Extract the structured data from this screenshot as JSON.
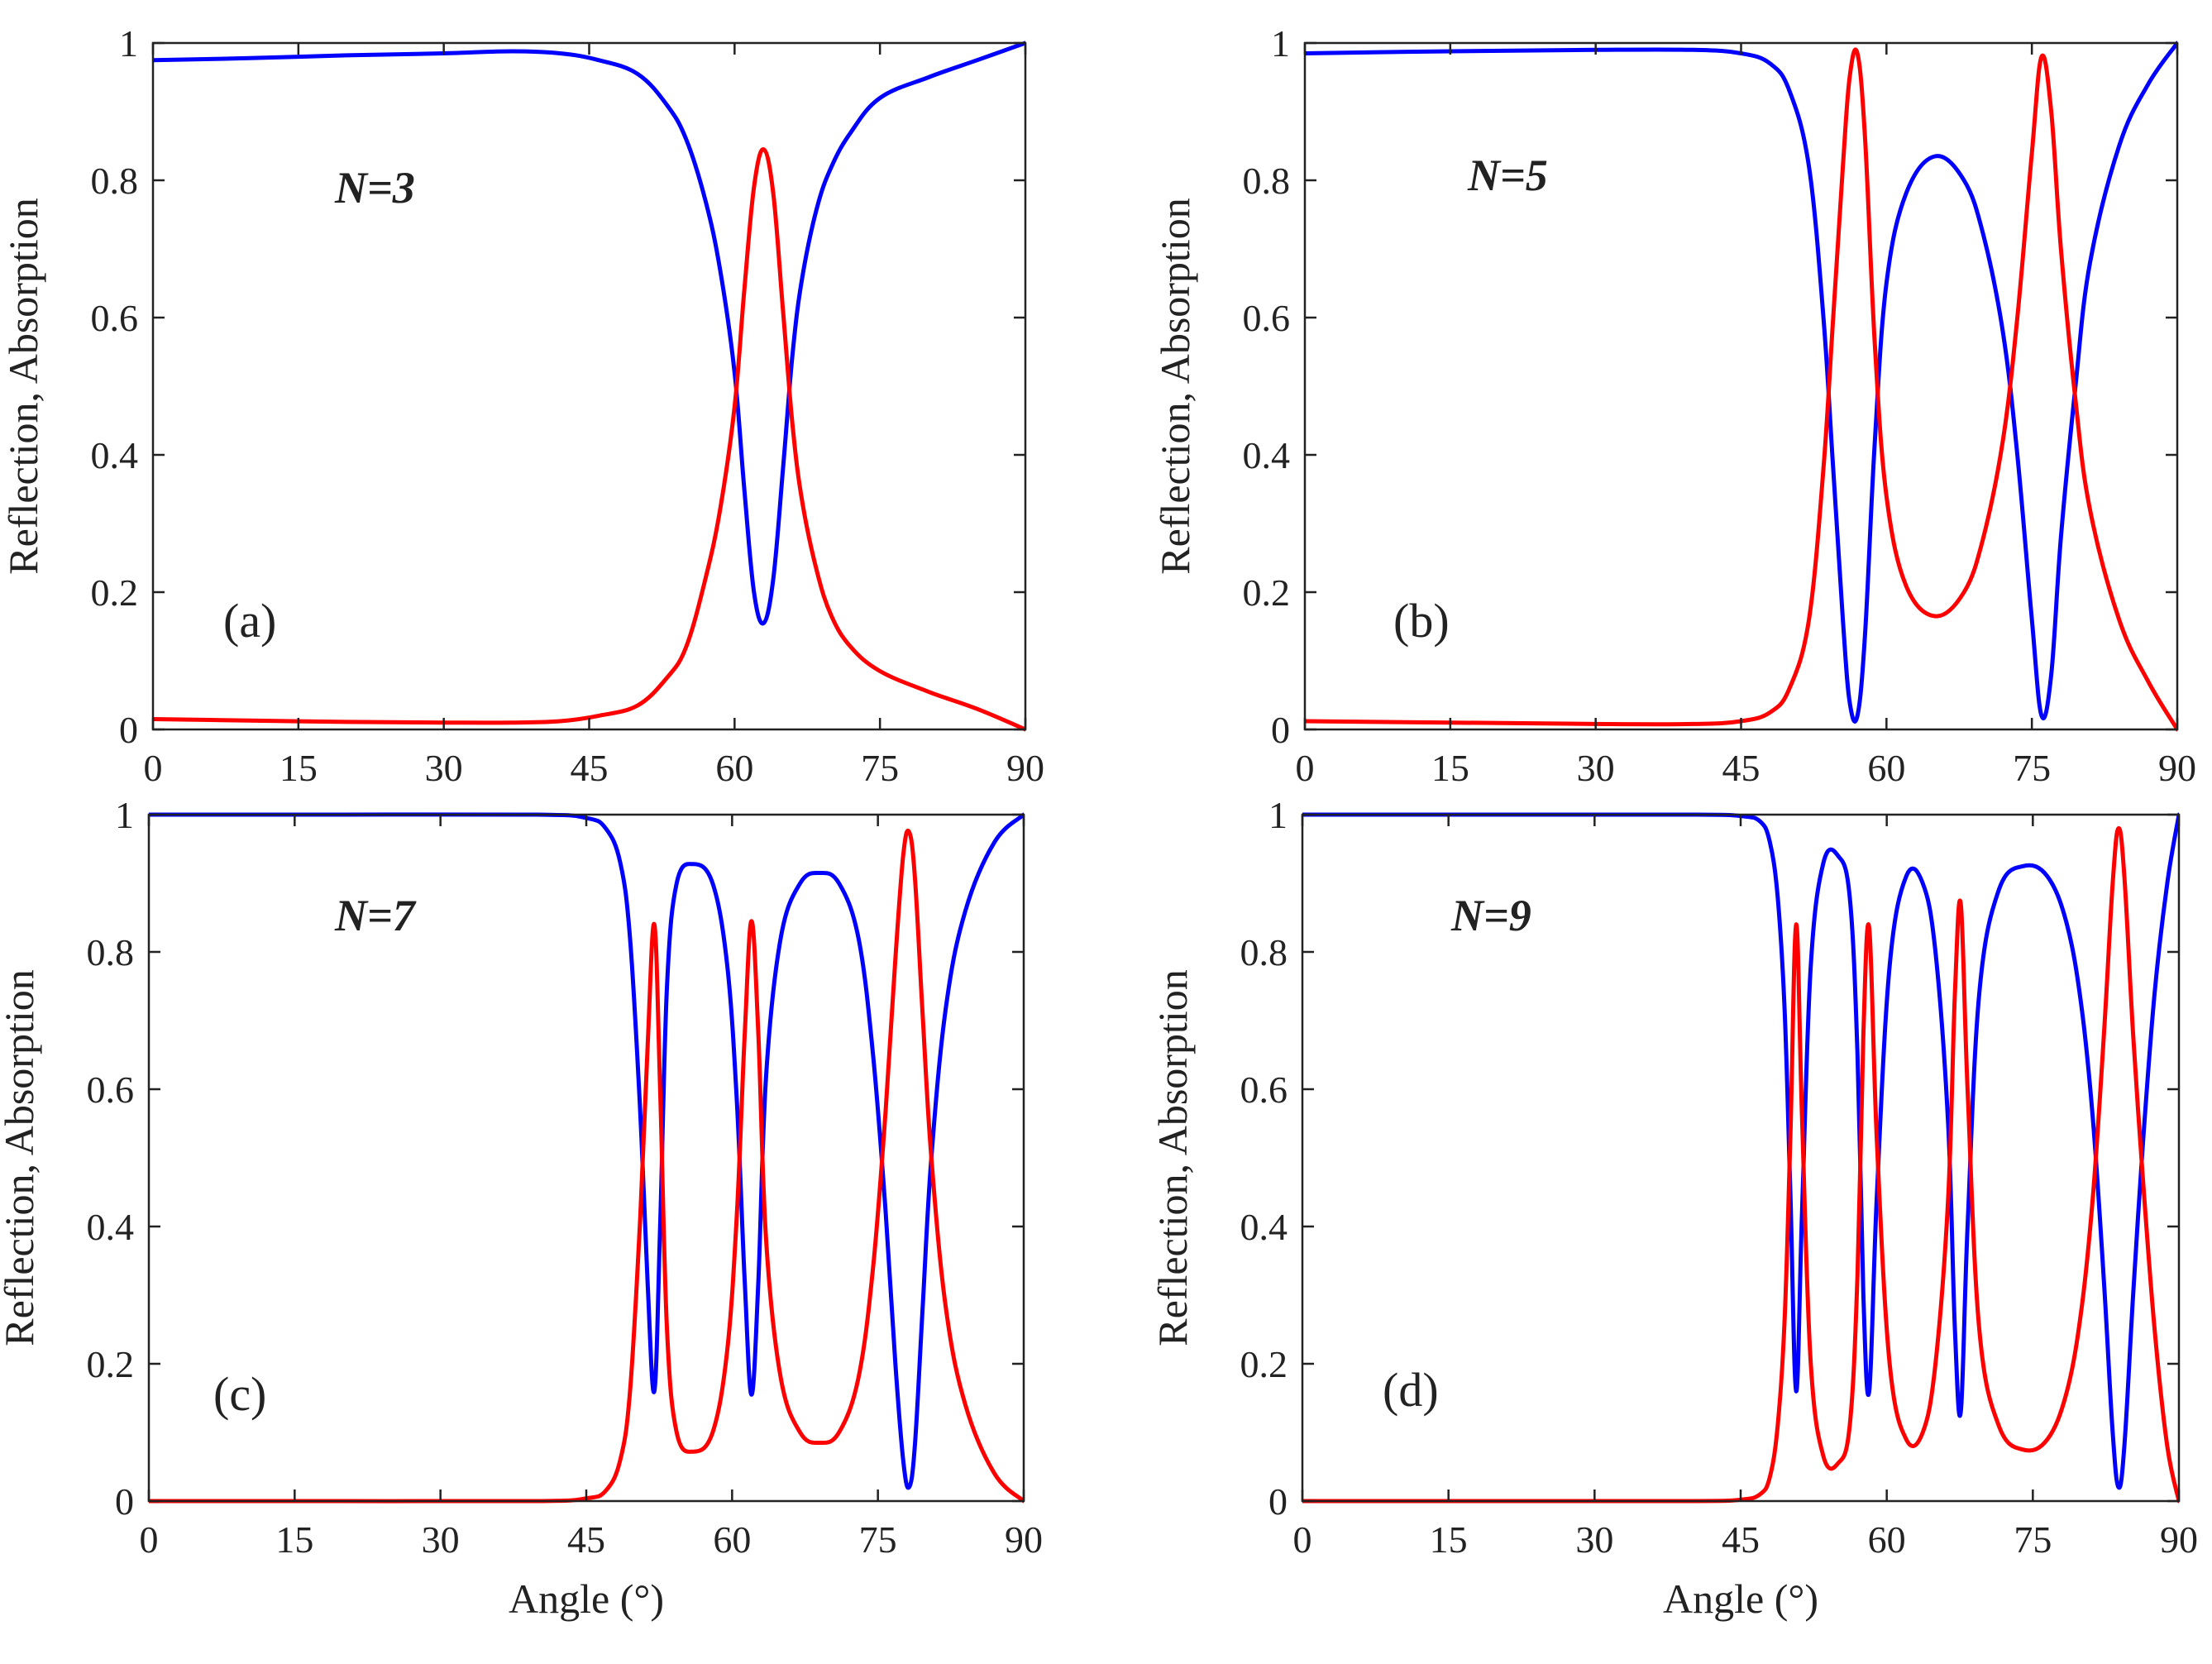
{
  "figure": {
    "colors": {
      "reflection": "#0000ff",
      "absorption": "#ff0000",
      "axes": "#222222"
    }
  },
  "chart_data": [
    {
      "type": "line",
      "panel": "(a)",
      "annotation": "N=3",
      "xlabel": "",
      "ylabel": "Reflection, Absorption",
      "xlim": [
        0,
        90
      ],
      "ylim": [
        0,
        1
      ],
      "xticks": [
        "0",
        "15",
        "30",
        "45",
        "60",
        "75",
        "90"
      ],
      "yticks": [
        "0",
        "0.2",
        "0.4",
        "0.6",
        "0.8",
        "1"
      ],
      "series": [
        {
          "name": "Reflection",
          "color": "#0000ff",
          "x": [
            0,
            10,
            20,
            30,
            37,
            42,
            46,
            50,
            53,
            55,
            57,
            58.5,
            60,
            61,
            62,
            63,
            64,
            65,
            66,
            67,
            68.5,
            70,
            72,
            75,
            80,
            85,
            90
          ],
          "y": [
            0.975,
            0.978,
            0.982,
            0.985,
            0.988,
            0.985,
            0.975,
            0.955,
            0.91,
            0.86,
            0.77,
            0.67,
            0.52,
            0.35,
            0.2,
            0.155,
            0.22,
            0.38,
            0.55,
            0.66,
            0.76,
            0.82,
            0.87,
            0.92,
            0.95,
            0.975,
            1.0
          ]
        },
        {
          "name": "Absorption",
          "color": "#ff0000",
          "x": [
            0,
            10,
            20,
            30,
            37,
            42,
            46,
            50,
            53,
            55,
            57,
            58.5,
            60,
            61,
            62,
            63,
            64,
            65,
            66,
            67,
            68.5,
            70,
            72,
            75,
            80,
            85,
            90
          ],
          "y": [
            0.015,
            0.013,
            0.011,
            0.01,
            0.01,
            0.012,
            0.02,
            0.035,
            0.075,
            0.12,
            0.22,
            0.32,
            0.47,
            0.64,
            0.79,
            0.845,
            0.78,
            0.61,
            0.44,
            0.33,
            0.23,
            0.165,
            0.12,
            0.085,
            0.055,
            0.03,
            0.0
          ]
        }
      ]
    },
    {
      "type": "line",
      "panel": "(b)",
      "annotation": "N=5",
      "xlabel": "",
      "ylabel": "Reflection, Absorption",
      "xlim": [
        0,
        90
      ],
      "ylim": [
        0,
        1
      ],
      "xticks": [
        "0",
        "15",
        "30",
        "45",
        "60",
        "75",
        "90"
      ],
      "yticks": [
        "0",
        "0.2",
        "0.4",
        "0.6",
        "0.8",
        "1"
      ],
      "series": [
        {
          "name": "Reflection",
          "color": "#0000ff",
          "x": [
            0,
            15,
            30,
            40,
            45,
            48,
            50,
            52,
            53.5,
            54.5,
            55.5,
            56.2,
            57,
            57.8,
            58.8,
            60,
            62,
            65,
            68,
            70,
            72,
            73.5,
            75,
            76,
            77,
            78,
            79.5,
            81,
            84,
            87,
            90
          ],
          "y": [
            0.985,
            0.988,
            0.99,
            0.99,
            0.985,
            0.97,
            0.93,
            0.82,
            0.6,
            0.38,
            0.16,
            0.04,
            0.02,
            0.14,
            0.42,
            0.65,
            0.78,
            0.835,
            0.8,
            0.72,
            0.58,
            0.4,
            0.16,
            0.02,
            0.08,
            0.28,
            0.5,
            0.68,
            0.85,
            0.94,
            1.0
          ]
        },
        {
          "name": "Absorption",
          "color": "#ff0000",
          "x": [
            0,
            15,
            30,
            40,
            45,
            48,
            50,
            52,
            53.5,
            54.5,
            55.5,
            56.2,
            57,
            57.8,
            58.8,
            60,
            62,
            65,
            68,
            70,
            72,
            73.5,
            75,
            76,
            77,
            78,
            79.5,
            81,
            84,
            87,
            90
          ],
          "y": [
            0.012,
            0.01,
            0.008,
            0.008,
            0.012,
            0.025,
            0.06,
            0.16,
            0.38,
            0.6,
            0.82,
            0.95,
            0.985,
            0.86,
            0.56,
            0.34,
            0.21,
            0.165,
            0.2,
            0.28,
            0.42,
            0.6,
            0.84,
            0.98,
            0.9,
            0.7,
            0.48,
            0.32,
            0.16,
            0.07,
            0.0
          ]
        }
      ]
    },
    {
      "type": "line",
      "panel": "(c)",
      "annotation": "N=7",
      "xlabel": "Angle (°)",
      "ylabel": "Reflection, Absorption",
      "xlim": [
        0,
        90
      ],
      "ylim": [
        0,
        1
      ],
      "xticks": [
        "0",
        "15",
        "30",
        "45",
        "60",
        "75",
        "90"
      ],
      "yticks": [
        "0",
        "0.2",
        "0.4",
        "0.6",
        "0.8",
        "1"
      ],
      "series": [
        {
          "name": "Reflection",
          "color": "#0000ff",
          "x": [
            0,
            20,
            40,
            45,
            47,
            48.5,
            49.5,
            50.5,
            51.3,
            52,
            52.6,
            53.3,
            54.3,
            56,
            58,
            59.5,
            60.5,
            61.3,
            62,
            62.7,
            63.5,
            65,
            67,
            69,
            71,
            73,
            74.5,
            75.8,
            76.8,
            77.6,
            78.2,
            78.8,
            79.6,
            80.5,
            82,
            84,
            87,
            90
          ],
          "y": [
            1.0,
            1.0,
            1.0,
            0.995,
            0.98,
            0.93,
            0.82,
            0.58,
            0.32,
            0.16,
            0.4,
            0.75,
            0.9,
            0.928,
            0.9,
            0.78,
            0.58,
            0.32,
            0.155,
            0.32,
            0.62,
            0.82,
            0.9,
            0.915,
            0.9,
            0.82,
            0.65,
            0.42,
            0.2,
            0.06,
            0.02,
            0.08,
            0.28,
            0.5,
            0.72,
            0.86,
            0.96,
            1.0
          ]
        },
        {
          "name": "Absorption",
          "color": "#ff0000",
          "x": [
            0,
            20,
            40,
            45,
            47,
            48.5,
            49.5,
            50.5,
            51.3,
            52,
            52.6,
            53.3,
            54.3,
            56,
            58,
            59.5,
            60.5,
            61.3,
            62,
            62.7,
            63.5,
            65,
            67,
            69,
            71,
            73,
            74.5,
            75.8,
            76.8,
            77.6,
            78.2,
            78.8,
            79.6,
            80.5,
            82,
            84,
            87,
            90
          ],
          "y": [
            0.0,
            0.0,
            0.0,
            0.004,
            0.015,
            0.06,
            0.16,
            0.4,
            0.66,
            0.84,
            0.6,
            0.25,
            0.1,
            0.072,
            0.1,
            0.22,
            0.42,
            0.68,
            0.845,
            0.68,
            0.38,
            0.18,
            0.1,
            0.085,
            0.1,
            0.18,
            0.34,
            0.57,
            0.79,
            0.94,
            0.975,
            0.91,
            0.71,
            0.5,
            0.28,
            0.14,
            0.04,
            0.0
          ]
        }
      ]
    },
    {
      "type": "line",
      "panel": "(d)",
      "annotation": "N=9",
      "xlabel": "Angle (°)",
      "ylabel": "Reflection, Absorption",
      "xlim": [
        0,
        90
      ],
      "ylim": [
        0,
        1
      ],
      "xticks": [
        "0",
        "15",
        "30",
        "45",
        "60",
        "75",
        "90"
      ],
      "yticks": [
        "0",
        "0.2",
        "0.4",
        "0.6",
        "0.8",
        "1"
      ],
      "series": [
        {
          "name": "Reflection",
          "color": "#0000ff",
          "x": [
            0,
            20,
            40,
            45,
            47,
            48,
            48.8,
            49.5,
            50.1,
            50.7,
            51.3,
            52.2,
            53.5,
            55,
            56.2,
            57,
            57.6,
            58.2,
            59,
            60.3,
            62,
            63.7,
            65,
            66.3,
            67,
            67.6,
            68.3,
            69.5,
            71.5,
            74,
            76.5,
            78.5,
            80,
            81.2,
            82.3,
            83.2,
            83.8,
            84.4,
            85.3,
            86.3,
            87.5,
            88.8,
            90
          ],
          "y": [
            1.0,
            1.0,
            1.0,
            0.998,
            0.99,
            0.96,
            0.88,
            0.72,
            0.45,
            0.16,
            0.42,
            0.78,
            0.93,
            0.94,
            0.88,
            0.65,
            0.3,
            0.16,
            0.45,
            0.78,
            0.91,
            0.9,
            0.8,
            0.55,
            0.25,
            0.13,
            0.4,
            0.74,
            0.89,
            0.925,
            0.91,
            0.84,
            0.72,
            0.55,
            0.32,
            0.1,
            0.02,
            0.08,
            0.3,
            0.52,
            0.74,
            0.9,
            1.0
          ]
        },
        {
          "name": "Absorption",
          "color": "#ff0000",
          "x": [
            0,
            20,
            40,
            45,
            47,
            48,
            48.8,
            49.5,
            50.1,
            50.7,
            51.3,
            52.2,
            53.5,
            55,
            56.2,
            57,
            57.6,
            58.2,
            59,
            60.3,
            62,
            63.7,
            65,
            66.3,
            67,
            67.6,
            68.3,
            69.5,
            71.5,
            74,
            76.5,
            78.5,
            80,
            81.2,
            82.3,
            83.2,
            83.8,
            84.4,
            85.3,
            86.3,
            87.5,
            88.8,
            90
          ],
          "y": [
            0.0,
            0.0,
            0.0,
            0.002,
            0.01,
            0.035,
            0.11,
            0.26,
            0.53,
            0.84,
            0.56,
            0.2,
            0.065,
            0.055,
            0.11,
            0.33,
            0.68,
            0.835,
            0.52,
            0.2,
            0.09,
            0.1,
            0.2,
            0.44,
            0.74,
            0.87,
            0.6,
            0.25,
            0.11,
            0.075,
            0.09,
            0.16,
            0.28,
            0.45,
            0.68,
            0.9,
            0.98,
            0.91,
            0.68,
            0.47,
            0.25,
            0.08,
            0.0
          ]
        }
      ]
    }
  ]
}
